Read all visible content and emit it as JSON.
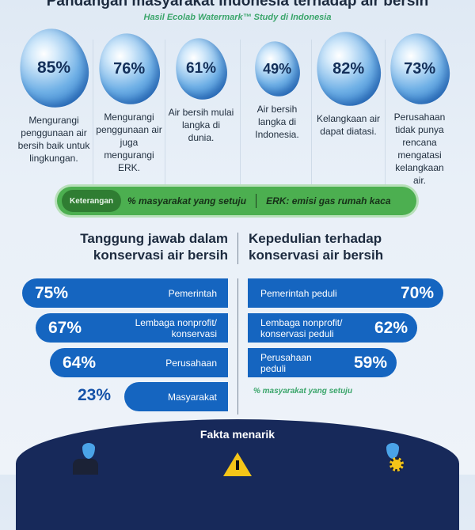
{
  "header": {
    "title": "Pandangan masyarakat Indonesia terhadap air bersih",
    "subtitle": "Hasil Ecolab Watermark™ Study di Indonesia"
  },
  "stats": [
    {
      "value": "85%",
      "text": "Mengurangi penggunaan air bersih baik untuk lingkungan."
    },
    {
      "value": "76%",
      "text": "Mengurangi penggunaan air juga mengurangi ERK."
    },
    {
      "value": "61%",
      "text": "Air bersih mulai langka di dunia."
    },
    {
      "value": "49%",
      "text": "Air bersih langka di Indonesia."
    },
    {
      "value": "82%",
      "text": "Kelangkaan air dapat diatasi."
    },
    {
      "value": "73%",
      "text": "Perusahaan tidak punya rencana mengatasi kelangkaan air."
    }
  ],
  "legend": {
    "tag": "Keterangan",
    "item1": "% masyarakat yang setuju",
    "item2": "ERK: emisi gas rumah kaca"
  },
  "left": {
    "title": "Tanggung jawab dalam konservasi air bersih",
    "rows": [
      {
        "value": "75%",
        "label": "Pemerintah"
      },
      {
        "value": "67%",
        "label": "Lembaga nonprofit/ konservasi"
      },
      {
        "value": "64%",
        "label": "Perusahaan"
      },
      {
        "value": "23%",
        "label": "Masyarakat"
      }
    ]
  },
  "right": {
    "title": "Kepedulian terhadap konservasi air bersih",
    "rows": [
      {
        "value": "70%",
        "label": "Pemerintah peduli"
      },
      {
        "value": "62%",
        "label": "Lembaga nonprofit/ konservasi peduli"
      },
      {
        "value": "59%",
        "label": "Perusahaan peduli"
      }
    ],
    "note": "% masyarakat yang setuju"
  },
  "footer": {
    "title": "Fakta menarik"
  },
  "colors": {
    "bar": "#1565c0",
    "green": "#4caf50",
    "navy": "#17295a"
  }
}
